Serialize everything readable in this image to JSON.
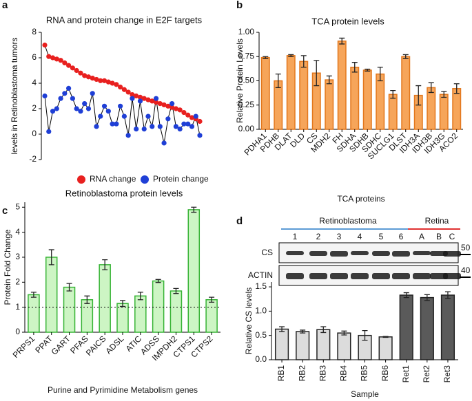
{
  "chart_data": [
    {
      "panel": "a",
      "type": "line",
      "title": "RNA and protein change in E2F targets",
      "y_label": "levels in  Retinoblastoma tumors",
      "categories": [
        null,
        null,
        null,
        null,
        null,
        null,
        null,
        null,
        null,
        null,
        null,
        null,
        null,
        null,
        null,
        null,
        null,
        null,
        null,
        null,
        null,
        null,
        null,
        null,
        null,
        null,
        null,
        null,
        null,
        null,
        null,
        null,
        null,
        null,
        null,
        null,
        null,
        null,
        null,
        null
      ],
      "series": [
        {
          "name": "RNA change",
          "color": "#e8201f",
          "values": [
            7.0,
            6.1,
            6.0,
            5.9,
            5.8,
            5.6,
            5.4,
            5.2,
            5.0,
            4.8,
            4.6,
            4.5,
            4.4,
            4.3,
            4.2,
            4.2,
            4.1,
            4.0,
            3.9,
            3.7,
            3.5,
            3.3,
            3.1,
            3.0,
            2.9,
            2.8,
            2.7,
            2.6,
            2.5,
            2.4,
            2.3,
            2.2,
            2.1,
            2.0,
            1.9,
            1.7,
            1.5,
            1.3,
            1.2,
            1.0
          ]
        },
        {
          "name": "Protein change",
          "color": "#1f3fd6",
          "values": [
            3.0,
            0.2,
            1.8,
            2.0,
            2.8,
            3.2,
            3.6,
            2.8,
            2.0,
            1.8,
            2.4,
            2.0,
            3.2,
            0.6,
            1.4,
            2.2,
            1.8,
            0.8,
            0.8,
            2.2,
            1.4,
            -0.1,
            2.8,
            0.4,
            2.6,
            0.4,
            1.4,
            0.6,
            2.8,
            0.6,
            -0.7,
            1.2,
            2.4,
            0.6,
            0.4,
            0.8,
            0.8,
            0.6,
            1.4,
            -0.1
          ]
        }
      ],
      "line_color": "#000000",
      "ylim": [
        -2,
        8
      ],
      "yticks": [
        -2,
        0,
        2,
        4,
        6,
        8
      ]
    },
    {
      "panel": "b",
      "type": "bar",
      "title": "TCA protein levels",
      "y_label": "Relative Protein Levels",
      "x_label": "TCA proteins",
      "categories": [
        "PDHA1",
        "PDHB",
        "DLAT",
        "DLD",
        "CS",
        "MDH2",
        "FH",
        "SDHA",
        "SDHB",
        "SDHC",
        "SUCLG1",
        "DLST",
        "IDH3A",
        "IDH3B",
        "IDH3G",
        "ACO2"
      ],
      "values": [
        0.74,
        0.5,
        0.76,
        0.7,
        0.58,
        0.51,
        0.91,
        0.64,
        0.61,
        0.57,
        0.36,
        0.75,
        0.35,
        0.43,
        0.36,
        0.42
      ],
      "errors": [
        0.01,
        0.07,
        0.01,
        0.06,
        0.13,
        0.04,
        0.03,
        0.05,
        0.01,
        0.07,
        0.04,
        0.02,
        0.1,
        0.05,
        0.03,
        0.05
      ],
      "color": "#f6a55a",
      "edge_color": "#e2771c",
      "ylim": [
        0,
        1.0
      ],
      "yticks": [
        {
          "value": 0,
          "label": "0.00"
        },
        {
          "value": 0.25,
          "label": "0.25"
        },
        {
          "value": 0.5,
          "label": "0.50"
        },
        {
          "value": 0.75,
          "label": "0.75"
        },
        {
          "value": 1.0,
          "label": "1.00"
        }
      ]
    },
    {
      "panel": "c",
      "type": "bar",
      "title": "Retinoblastoma protein levels",
      "y_label": "Protein Fold Change",
      "x_label": "Purine and Pyrimidine Metabolism genes",
      "categories": [
        "PRPS1",
        "PPAT",
        "GART",
        "PFAS",
        "PAICS",
        "ADSL",
        "ATIC",
        "ADSS",
        "IMPDH2",
        "CTPS1",
        "CTPS2"
      ],
      "values": [
        1.5,
        3.0,
        1.8,
        1.3,
        2.7,
        1.15,
        1.45,
        2.05,
        1.65,
        4.9,
        1.3
      ],
      "errors": [
        0.1,
        0.3,
        0.15,
        0.15,
        0.2,
        0.12,
        0.15,
        0.06,
        0.1,
        0.1,
        0.1
      ],
      "color": "#cdf5c4",
      "edge_color": "#37b335",
      "reference_line": 1,
      "ylim": [
        0,
        5.2
      ],
      "yticks": [
        0,
        1,
        2,
        3,
        4,
        5
      ]
    },
    {
      "panel": "d",
      "type": "bar",
      "y_label": "Relative CS levels",
      "x_label": "Sample",
      "categories": [
        "RB1",
        "RB2",
        "RB3",
        "RB4",
        "RB5",
        "RB6",
        "Ret1",
        "Ret2",
        "Ret3"
      ],
      "values": [
        0.63,
        0.58,
        0.62,
        0.55,
        0.5,
        0.47,
        1.33,
        1.28,
        1.33
      ],
      "errors": [
        0.05,
        0.03,
        0.06,
        0.04,
        0.1,
        0.01,
        0.05,
        0.06,
        0.07
      ],
      "colors": [
        "#dcdcdc",
        "#dcdcdc",
        "#dcdcdc",
        "#dcdcdc",
        "#dcdcdc",
        "#dcdcdc",
        "#5a5a5a",
        "#5a5a5a",
        "#5a5a5a"
      ],
      "edge_color": "#222222",
      "ylim": [
        0,
        1.6
      ],
      "yticks": [
        {
          "value": 0,
          "label": "0.0"
        },
        {
          "value": 0.5,
          "label": "0.5"
        },
        {
          "value": 1.0,
          "label": "1.0"
        },
        {
          "value": 1.5,
          "label": "1.5"
        }
      ]
    }
  ],
  "blot": {
    "groups": [
      {
        "label": "Retinoblastoma",
        "color": "#5b9bd5",
        "lanes": [
          "1",
          "2",
          "3",
          "4",
          "5",
          "6"
        ]
      },
      {
        "label": "Retina",
        "color": "#e03030",
        "lanes": [
          "A",
          "B",
          "C"
        ]
      }
    ],
    "rows": [
      "CS",
      "ACTIN"
    ],
    "markers": [
      "50",
      "40"
    ]
  }
}
